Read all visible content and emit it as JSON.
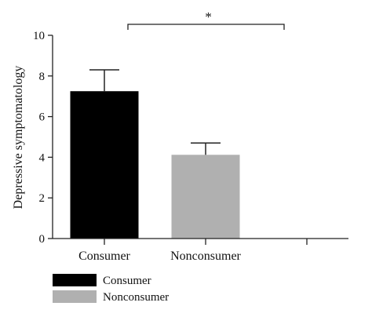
{
  "chart_data": {
    "type": "bar",
    "title": "",
    "xlabel": "",
    "ylabel": "Depressive symptomatology",
    "ylim": [
      0,
      10
    ],
    "yticks": [
      "0",
      "2",
      "4",
      "6",
      "8",
      "10"
    ],
    "categories": [
      "Consumer",
      "Nonconsumer",
      ""
    ],
    "values": [
      7.25,
      4.12,
      null
    ],
    "error_upper": [
      8.3,
      4.7,
      null
    ],
    "colors": [
      "#000000",
      "#b0b0b0"
    ],
    "grid": false,
    "legend_position": "bottom-left",
    "legend": [
      {
        "label": "Consumer",
        "color": "#000000"
      },
      {
        "label": "Nonconsumer",
        "color": "#b0b0b0"
      }
    ],
    "annotations": [
      {
        "text": "*",
        "type": "significance-bracket",
        "between": [
          "Consumer",
          ""
        ]
      }
    ]
  }
}
